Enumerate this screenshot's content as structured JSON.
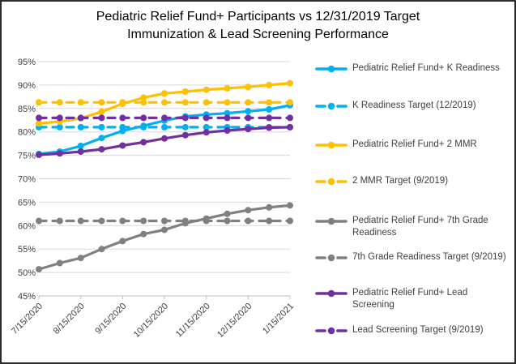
{
  "title": {
    "line1": "Pediatric Relief Fund+ Participants vs 12/31/2019 Target",
    "line2": "Immunization & Lead Screening Performance"
  },
  "colors": {
    "blue": "#00B0F0",
    "gold": "#FFC000",
    "gray": "#808080",
    "purple": "#7030A0",
    "gridline": "#D9D9D9",
    "axis_line": "#BFBFBF",
    "tick_label": "#404040"
  },
  "chart_data": {
    "type": "line",
    "title": "Pediatric Relief Fund+ Participants vs 12/31/2019 Target Immunization & Lead Screening Performance",
    "xlabel": "",
    "ylabel": "",
    "ylim": [
      45,
      95
    ],
    "y_tick_step": 5,
    "y_tick_labels": [
      "95%",
      "90%",
      "85%",
      "80%",
      "75%",
      "70%",
      "65%",
      "60%",
      "55%",
      "50%",
      "45%"
    ],
    "grid": true,
    "legend_position": "right",
    "x": [
      "7/15/2020",
      "8/1/2020",
      "8/15/2020",
      "9/1/2020",
      "9/15/2020",
      "10/1/2020",
      "10/15/2020",
      "11/1/2020",
      "11/15/2020",
      "12/1/2020",
      "12/15/2020",
      "1/1/2021",
      "1/15/2021"
    ],
    "x_axis_labels": [
      "7/15/2020",
      "8/15/2020",
      "9/15/2020",
      "10/15/2020",
      "11/15/2020",
      "12/15/2020",
      "1/15/2021"
    ],
    "series": [
      {
        "name": "Pediatric Relief Fund+ K Readiness",
        "color": "#00B0F0",
        "style": "solid",
        "values": [
          75.3,
          75.8,
          77.0,
          78.7,
          80.2,
          81.3,
          82.4,
          83.3,
          83.7,
          84.0,
          84.4,
          84.8,
          85.7
        ]
      },
      {
        "name": "K Readiness Target (12/2019)",
        "color": "#00B0F0",
        "style": "dashed",
        "values": [
          81,
          81,
          81,
          81,
          81,
          81,
          81,
          81,
          81,
          81,
          81,
          81,
          81
        ]
      },
      {
        "name": "Pediatric Relief Fund+ 2 MMR",
        "color": "#FFC000",
        "style": "solid",
        "values": [
          81.8,
          82.2,
          82.9,
          84.3,
          86.0,
          87.3,
          88.2,
          88.6,
          89.0,
          89.3,
          89.6,
          90.0,
          90.4
        ]
      },
      {
        "name": "2 MMR Target (9/2019)",
        "color": "#FFC000",
        "style": "dashed",
        "values": [
          86.3,
          86.3,
          86.3,
          86.3,
          86.3,
          86.3,
          86.3,
          86.3,
          86.3,
          86.3,
          86.3,
          86.3,
          86.3
        ]
      },
      {
        "name": "Pediatric Relief Fund+ 7th Grade Readiness",
        "color": "#808080",
        "style": "solid",
        "values": [
          50.7,
          52.0,
          53.1,
          55.0,
          56.7,
          58.2,
          59.1,
          60.5,
          61.5,
          62.5,
          63.3,
          63.9,
          64.3
        ]
      },
      {
        "name": "7th Grade Readiness Target (9/2019)",
        "color": "#808080",
        "style": "dashed",
        "values": [
          61,
          61,
          61,
          61,
          61,
          61,
          61,
          61,
          61,
          61,
          61,
          61,
          61
        ]
      },
      {
        "name": "Pediatric Relief Fund+ Lead Screening",
        "color": "#7030A0",
        "style": "solid",
        "values": [
          75.1,
          75.4,
          75.8,
          76.3,
          77.1,
          77.8,
          78.6,
          79.3,
          79.9,
          80.3,
          80.6,
          80.9,
          81.0
        ]
      },
      {
        "name": "Lead Screening Target (9/2019)",
        "color": "#7030A0",
        "style": "dashed",
        "values": [
          83,
          83,
          83,
          83,
          83,
          83,
          83,
          83,
          83,
          83,
          83,
          83,
          83
        ]
      }
    ]
  },
  "legend": {
    "row_tops": [
      75,
      121,
      169,
      214,
      263,
      308,
      352,
      398
    ]
  }
}
